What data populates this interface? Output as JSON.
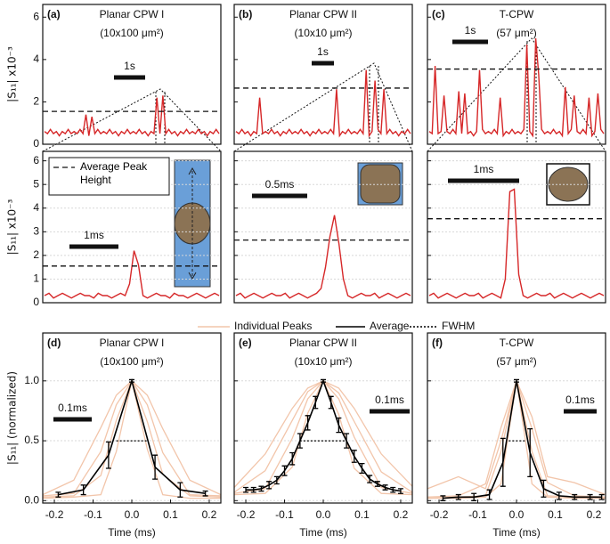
{
  "chart_data": [
    {
      "type": "line",
      "label": "(a)",
      "title": "Planar CPW I",
      "subtitle": "(10x100 μm²)",
      "ylabel": "|S₁₁| x10⁻³",
      "ylim": [
        0,
        6.6
      ],
      "yticks": [
        0,
        2,
        4,
        6
      ],
      "ytick_labels": true,
      "grid": false,
      "color": "#d62728",
      "scale_bar": "1s",
      "values": [
        0.6,
        0.5,
        0.7,
        0.5,
        0.6,
        0.4,
        0.6,
        0.5,
        0.7,
        0.5,
        0.6,
        0.5,
        0.7,
        0.5,
        1.4,
        0.4,
        1.3,
        0.5,
        0.7,
        0.5,
        0.6,
        0.5,
        0.7,
        0.5,
        0.6,
        0.4,
        0.6,
        0.5,
        0.7,
        0.5,
        0.6,
        0.5,
        0.7,
        0.5,
        0.6,
        0.4,
        0.6,
        0.5,
        2.2,
        0.5,
        2.3,
        0.5,
        0.7,
        0.5,
        0.6,
        0.4,
        0.6,
        0.5,
        0.7,
        0.5,
        0.6,
        0.5,
        0.7,
        0.5,
        0.6,
        0.4,
        0.6,
        0.5,
        0.7,
        0.5
      ],
      "reference_line": {
        "value": 1.55
      }
    },
    {
      "type": "line",
      "label": "(b)",
      "title": "Planar CPW II",
      "subtitle": "(10x10 μm²)",
      "ylim": [
        0,
        6.6
      ],
      "yticks": [
        0,
        2,
        4,
        6
      ],
      "ytick_labels": false,
      "grid": false,
      "color": "#d62728",
      "scale_bar": "1s",
      "values": [
        0.6,
        0.5,
        0.7,
        0.5,
        0.6,
        0.4,
        0.6,
        0.5,
        2.2,
        0.5,
        0.6,
        0.5,
        0.7,
        0.5,
        0.6,
        0.4,
        0.6,
        0.5,
        0.7,
        0.5,
        0.6,
        0.5,
        0.7,
        0.5,
        0.6,
        0.4,
        0.6,
        0.5,
        0.7,
        0.5,
        0.6,
        0.5,
        0.7,
        0.5,
        2.6,
        0.4,
        0.6,
        0.5,
        0.7,
        0.5,
        0.6,
        0.5,
        0.7,
        0.5,
        3.5,
        0.4,
        0.6,
        3.0,
        0.7,
        0.5,
        2.6,
        0.5,
        0.7,
        0.5,
        0.6,
        0.4,
        0.6,
        0.5,
        0.7,
        0.5
      ],
      "reference_line": {
        "value": 2.65
      }
    },
    {
      "type": "line",
      "label": "(c)",
      "title": "T-CPW",
      "subtitle": "(57 μm²)",
      "ylim": [
        0,
        6.6
      ],
      "yticks": [
        0,
        2,
        4,
        6
      ],
      "ytick_labels": false,
      "grid": false,
      "color": "#d62728",
      "scale_bar": "1s",
      "values": [
        0.6,
        0.5,
        3.7,
        0.5,
        0.6,
        2.3,
        0.6,
        0.5,
        0.7,
        0.5,
        2.5,
        0.5,
        2.4,
        0.5,
        0.6,
        0.4,
        0.6,
        3.5,
        0.7,
        0.5,
        0.6,
        0.5,
        0.7,
        0.5,
        2.2,
        0.4,
        0.6,
        0.5,
        0.7,
        0.5,
        0.6,
        0.5,
        0.7,
        4.7,
        0.6,
        0.4,
        5.0,
        3.3,
        0.7,
        0.5,
        0.6,
        0.5,
        0.7,
        0.5,
        0.6,
        0.4,
        2.7,
        0.5,
        0.7,
        2.3,
        0.6,
        0.5,
        0.7,
        0.5,
        2.2,
        0.4,
        0.6,
        2.4,
        0.7,
        0.5
      ],
      "reference_line": {
        "value": 3.55
      }
    },
    {
      "type": "line",
      "ylabel": "|S₁₁| x10⁻³",
      "ylim": [
        0,
        6.4
      ],
      "yticks": [
        0,
        1,
        2,
        3,
        4,
        5,
        6
      ],
      "ytick_labels": true,
      "grid": true,
      "color": "#d62728",
      "scale_bar": "1ms",
      "values": [
        0.3,
        0.4,
        0.2,
        0.3,
        0.4,
        0.3,
        0.2,
        0.3,
        0.4,
        0.3,
        0.3,
        0.2,
        0.4,
        0.3,
        0.3,
        0.2,
        0.3,
        0.4,
        0.3,
        0.8,
        2.2,
        1.6,
        0.3,
        0.2,
        0.3,
        0.4,
        0.3,
        0.3,
        0.2,
        0.4,
        0.3,
        0.3,
        0.2,
        0.3,
        0.4,
        0.3,
        0.2,
        0.3,
        0.4,
        0.3
      ],
      "reference_line": {
        "name": "Average Peak Height",
        "value": 1.55
      }
    },
    {
      "type": "line",
      "ylim": [
        0,
        6.4
      ],
      "yticks": [
        0,
        1,
        2,
        3,
        4,
        5,
        6
      ],
      "ytick_labels": false,
      "grid": true,
      "color": "#d62728",
      "scale_bar": "0.5ms",
      "values": [
        0.3,
        0.4,
        0.2,
        0.3,
        0.4,
        0.3,
        0.2,
        0.3,
        0.4,
        0.3,
        0.3,
        0.4,
        0.2,
        0.3,
        0.4,
        0.3,
        0.2,
        0.3,
        0.4,
        0.6,
        1.5,
        2.8,
        3.7,
        2.5,
        1.0,
        0.3,
        0.2,
        0.3,
        0.4,
        0.3,
        0.3,
        0.4,
        0.2,
        0.3,
        0.4,
        0.3,
        0.2,
        0.3,
        0.4,
        0.3
      ],
      "reference_line": {
        "value": 2.65
      }
    },
    {
      "type": "line",
      "ylim": [
        0,
        6.4
      ],
      "yticks": [
        0,
        1,
        2,
        3,
        4,
        5,
        6
      ],
      "ytick_labels": false,
      "grid": true,
      "color": "#d62728",
      "scale_bar": "1ms",
      "values": [
        0.3,
        0.4,
        0.2,
        0.3,
        0.4,
        0.3,
        0.2,
        0.3,
        0.4,
        0.3,
        0.3,
        0.4,
        0.2,
        0.3,
        0.4,
        0.3,
        0.2,
        1.0,
        4.7,
        4.8,
        1.2,
        0.3,
        0.2,
        0.3,
        0.4,
        0.3,
        0.3,
        0.4,
        0.2,
        0.3,
        0.4,
        0.3,
        0.2,
        0.3,
        0.4,
        0.3,
        0.2,
        0.3,
        0.4,
        0.3
      ],
      "reference_line": {
        "value": 3.55
      }
    },
    {
      "type": "line",
      "label": "(d)",
      "title": "Planar CPW I",
      "subtitle": "(10x100 μm²)",
      "ylabel": "|S₁₁| (normalized)",
      "xlabel": "Time (ms)",
      "xlim": [
        -0.23,
        0.23
      ],
      "xticks": [
        -0.2,
        -0.1,
        {
          "value": 0,
          "label": "0.0"
        },
        0.1,
        0.2
      ],
      "ylim": [
        -0.02,
        1.4
      ],
      "yticks": [
        {
          "value": 0,
          "label": "0.0"
        },
        0.5,
        {
          "value": 1,
          "label": "1.0"
        }
      ],
      "ytick_labels": true,
      "grid": true,
      "scale_bar": "0.1ms",
      "series": [
        {
          "name": "Individual Peaks",
          "color": "#f2c5aa",
          "x": [
            -0.23,
            -0.15,
            -0.08,
            -0.04,
            0,
            0.04,
            0.08,
            0.15,
            0.23
          ],
          "values": [
            0.02,
            0.03,
            0.05,
            0.41,
            1,
            0.43,
            0.05,
            0.02,
            0.02
          ]
        },
        {
          "color": "#f2c5aa",
          "x": [
            -0.23,
            -0.15,
            -0.08,
            -0.04,
            0,
            0.04,
            0.08,
            0.15,
            0.23
          ],
          "values": [
            0.03,
            0.04,
            0.21,
            0.67,
            1,
            0.66,
            0.22,
            0.04,
            0.03
          ]
        },
        {
          "color": "#f2c5aa",
          "x": [
            -0.23,
            -0.15,
            -0.08,
            -0.04,
            0,
            0.04,
            0.08,
            0.15,
            0.23
          ],
          "values": [
            0.04,
            0.06,
            0.41,
            0.8,
            1,
            0.8,
            0.4,
            0.05,
            0.04
          ]
        },
        {
          "color": "#f2c5aa",
          "x": [
            -0.23,
            -0.15,
            -0.08,
            -0.04,
            0,
            0.04,
            0.08,
            0.15,
            0.23
          ],
          "values": [
            0.05,
            0.17,
            0.61,
            0.88,
            1,
            0.88,
            0.6,
            0.17,
            0.05
          ]
        },
        {
          "name": "Average",
          "color": "#000000",
          "x": [
            -0.19,
            -0.125,
            -0.06,
            0,
            0.06,
            0.125,
            0.19
          ],
          "values": [
            0.05,
            0.09,
            0.38,
            1.0,
            0.28,
            0.09,
            0.06
          ],
          "errors": [
            0.02,
            0.04,
            0.11,
            0.01,
            0.1,
            0.06,
            0.02
          ]
        },
        {
          "name": "FWHM",
          "color": "#000000",
          "dash": "dotted",
          "x": [
            -0.04,
            0.04
          ],
          "values": [
            0.5,
            0.5
          ]
        }
      ]
    },
    {
      "type": "line",
      "label": "(e)",
      "title": "Planar CPW II",
      "subtitle": "(10x10 μm²)",
      "xlabel": "Time (ms)",
      "xlim": [
        -0.23,
        0.23
      ],
      "xticks": [
        -0.2,
        -0.1,
        {
          "value": 0,
          "label": "0.0"
        },
        0.1,
        0.2
      ],
      "ylim": [
        -0.02,
        1.4
      ],
      "yticks": [
        0,
        0.5,
        1
      ],
      "ytick_labels": false,
      "grid": true,
      "scale_bar": "0.1ms",
      "series": [
        {
          "color": "#f2c5aa",
          "x": [
            -0.23,
            -0.15,
            -0.08,
            -0.04,
            0,
            0.04,
            0.08,
            0.15,
            0.23
          ],
          "values": [
            0.05,
            0.06,
            0.28,
            0.73,
            1,
            0.72,
            0.27,
            0.06,
            0.05
          ]
        },
        {
          "color": "#f2c5aa",
          "x": [
            -0.23,
            -0.15,
            -0.08,
            -0.04,
            0,
            0.04,
            0.08,
            0.15,
            0.23
          ],
          "values": [
            0.06,
            0.1,
            0.52,
            0.85,
            1,
            0.85,
            0.53,
            0.11,
            0.06
          ]
        },
        {
          "color": "#f2c5aa",
          "x": [
            -0.23,
            -0.15,
            -0.08,
            -0.04,
            0,
            0.04,
            0.08,
            0.15,
            0.23
          ],
          "values": [
            0.07,
            0.25,
            0.67,
            0.91,
            1,
            0.9,
            0.66,
            0.24,
            0.07
          ]
        },
        {
          "color": "#f2c5aa",
          "x": [
            -0.23,
            -0.15,
            -0.08,
            -0.04,
            0,
            0.04,
            0.08,
            0.15,
            0.23
          ],
          "values": [
            0.11,
            0.39,
            0.77,
            0.94,
            1,
            0.94,
            0.77,
            0.39,
            0.12
          ]
        },
        {
          "color": "#000000",
          "x": [
            -0.2,
            -0.18,
            -0.16,
            -0.14,
            -0.12,
            -0.1,
            -0.08,
            -0.06,
            -0.04,
            -0.02,
            0,
            0.02,
            0.04,
            0.06,
            0.08,
            0.1,
            0.12,
            0.14,
            0.16,
            0.18,
            0.2
          ],
          "values": [
            0.09,
            0.09,
            0.1,
            0.13,
            0.17,
            0.25,
            0.35,
            0.5,
            0.65,
            0.82,
            1.0,
            0.82,
            0.63,
            0.5,
            0.37,
            0.27,
            0.18,
            0.14,
            0.11,
            0.09,
            0.08
          ],
          "errors": [
            0.02,
            0.02,
            0.02,
            0.03,
            0.03,
            0.04,
            0.05,
            0.06,
            0.06,
            0.05,
            0.01,
            0.05,
            0.06,
            0.06,
            0.05,
            0.04,
            0.03,
            0.02,
            0.02,
            0.02,
            0.02
          ]
        },
        {
          "color": "#000000",
          "dash": "dotted",
          "x": [
            -0.06,
            0.06
          ],
          "values": [
            0.5,
            0.5
          ]
        }
      ]
    },
    {
      "type": "line",
      "label": "(f)",
      "title": "T-CPW",
      "subtitle": "(57 μm²)",
      "xlabel": "Time (ms)",
      "xlim": [
        -0.23,
        0.23
      ],
      "xticks": [
        -0.2,
        -0.1,
        {
          "value": 0,
          "label": "0.0"
        },
        0.1,
        0.2
      ],
      "ylim": [
        -0.02,
        1.4
      ],
      "yticks": [
        0,
        0.5,
        1
      ],
      "ytick_labels": false,
      "grid": true,
      "scale_bar": "0.1ms",
      "series": [
        {
          "color": "#f2c5aa",
          "x": [
            -0.23,
            -0.15,
            -0.08,
            -0.04,
            0,
            0.04,
            0.08,
            0.15,
            0.23
          ],
          "values": [
            0.02,
            0.02,
            0.03,
            0.14,
            1,
            0.14,
            0.03,
            0.02,
            0.02
          ]
        },
        {
          "color": "#f2c5aa",
          "x": [
            -0.23,
            -0.15,
            -0.08,
            -0.04,
            0,
            0.04,
            0.08,
            0.15,
            0.23
          ],
          "values": [
            0.02,
            0.03,
            0.04,
            0.41,
            1,
            0.41,
            0.04,
            0.03,
            0.02
          ]
        },
        {
          "color": "#f2c5aa",
          "x": [
            -0.23,
            -0.15,
            -0.08,
            -0.04,
            0,
            0.04,
            0.08,
            0.15,
            0.23
          ],
          "values": [
            0.03,
            0.04,
            0.14,
            0.61,
            1,
            0.6,
            0.15,
            0.04,
            0.03
          ]
        },
        {
          "color": "#f2c5aa",
          "x": [
            -0.23,
            -0.15,
            -0.08,
            -0.04,
            0,
            0.04,
            0.08,
            0.15,
            0.23
          ],
          "values": [
            0.1,
            0.2,
            0.1,
            0.5,
            1,
            0.7,
            0.2,
            0.15,
            0.05
          ]
        },
        {
          "color": "#000000",
          "x": [
            -0.19,
            -0.15,
            -0.11,
            -0.07,
            -0.035,
            0,
            0.035,
            0.07,
            0.11,
            0.15,
            0.19,
            0.22
          ],
          "values": [
            0.02,
            0.03,
            0.03,
            0.05,
            0.32,
            1.0,
            0.4,
            0.1,
            0.04,
            0.03,
            0.03,
            0.03
          ],
          "errors": [
            0.02,
            0.02,
            0.03,
            0.04,
            0.2,
            0.01,
            0.2,
            0.07,
            0.03,
            0.02,
            0.02,
            0.02
          ]
        },
        {
          "color": "#000000",
          "dash": "dotted",
          "x": [
            -0.02,
            0.025
          ],
          "values": [
            0.5,
            0.5
          ]
        }
      ]
    }
  ]
}
